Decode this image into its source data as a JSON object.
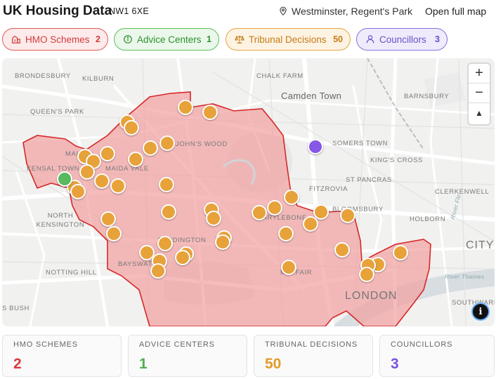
{
  "header": {
    "title": "UK Housing Data",
    "postcode": "NW1 6XE",
    "location_icon": "map-pin-icon",
    "location": "Westminster, Regent's Park",
    "open_map_label": "Open full map"
  },
  "filters": [
    {
      "id": "hmo",
      "icon": "building-icon",
      "label": "HMO Schemes",
      "count": "2",
      "color": "#d13c3c"
    },
    {
      "id": "advice",
      "icon": "info-circle-icon",
      "label": "Advice Centers",
      "count": "1",
      "color": "#2f8f2f"
    },
    {
      "id": "tribunal",
      "icon": "scales-icon",
      "label": "Tribunal Decisions",
      "count": "50",
      "color": "#c47c16"
    },
    {
      "id": "councillors",
      "icon": "person-icon",
      "label": "Councillors",
      "count": "3",
      "color": "#6a4fc9"
    }
  ],
  "map": {
    "labels": {
      "brondesbury": "BRONDESBURY",
      "kilburn": "KILBURN",
      "chalk_farm": "CHALK FARM",
      "camden_town": "Camden Town",
      "barnsbury": "BARNSBURY",
      "queens_park": "QUEEN'S PARK",
      "somers_town": "SOMERS TOWN",
      "johns_wood": "JOHN'S WOOD",
      "maida": "MAI",
      "kensal_town": "KENSAL TOWN",
      "maida_vale": "MAIDA VALE",
      "kings_cross": "KING'S CROSS",
      "st_pancras": "ST PANCRAS",
      "fitzrovia": "FITZROVIA",
      "clerkenwell": "CLERKENWELL",
      "north_kensington": "NORTH KENSINGTON",
      "bloomsbury": "BLOOMSBURY",
      "marylebone": "MARYLEBONE",
      "holborn": "HOLBORN",
      "paddington": "PADDINGTON",
      "city": "CITY O",
      "notting_hill": "NOTTING HILL",
      "bayswater": "BAYSWATER",
      "mayfair": "MAYFAIR",
      "river": "River Thames",
      "london": "LONDON",
      "bush": "S BUSH",
      "southwark": "SOUTHWARK",
      "river_fleet": "River Fle"
    },
    "controls": {
      "zoom_in": "+",
      "zoom_out": "−",
      "compass": "▲",
      "info": "i"
    },
    "colors": {
      "ward_fill": "#f2a0a0",
      "ward_stroke": "#d62828",
      "tribunal": "#e8a23a",
      "advice": "#58b95d",
      "councillor": "#8757e6"
    }
  },
  "stats": [
    {
      "label": "HMO SCHEMES",
      "value": "2"
    },
    {
      "label": "ADVICE CENTERS",
      "value": "1"
    },
    {
      "label": "TRIBUNAL DECISIONS",
      "value": "50"
    },
    {
      "label": "COUNCILLORS",
      "value": "3"
    }
  ]
}
